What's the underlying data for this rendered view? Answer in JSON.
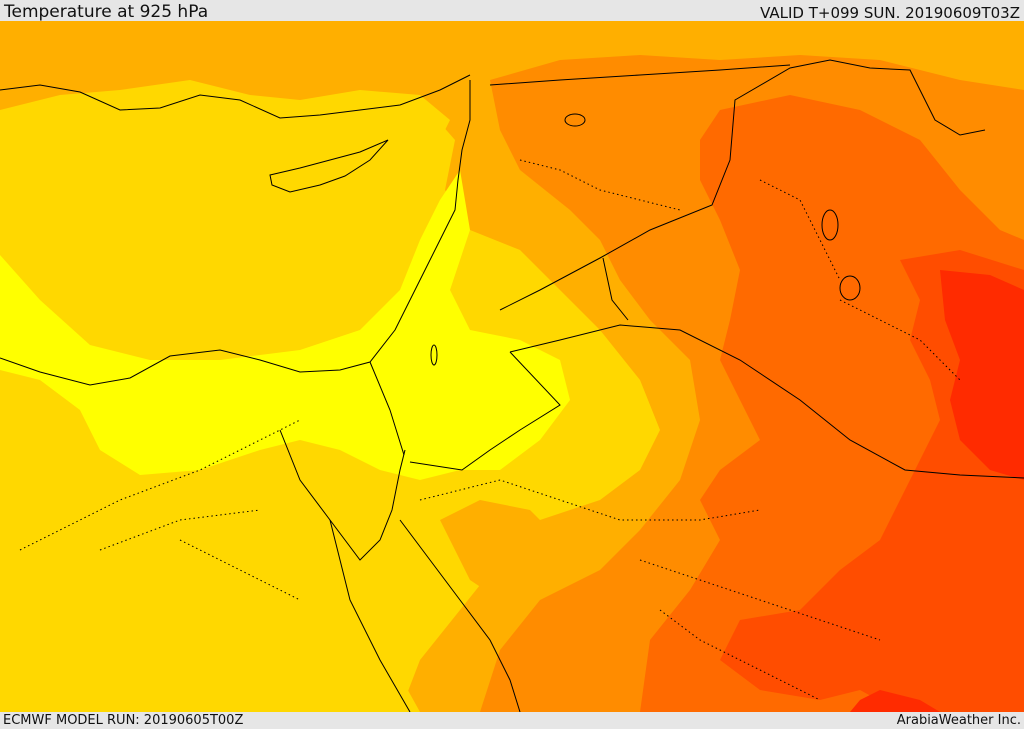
{
  "header": {
    "title": "Temperature at 925 hPa",
    "valid": "VALID T+099 SUN. 20190609T03Z"
  },
  "footer": {
    "run": "ECMWF MODEL RUN: 20190605T00Z",
    "credit": "ArabiaWeather Inc."
  },
  "palette": {
    "pale_yellow": "#ffff00",
    "yellow": "#ffd800",
    "light_orange": "#ffaf00",
    "orange": "#ff8c00",
    "dark_orange": "#ff6a00",
    "red_orange": "#ff4d00",
    "red": "#ff2b00"
  }
}
